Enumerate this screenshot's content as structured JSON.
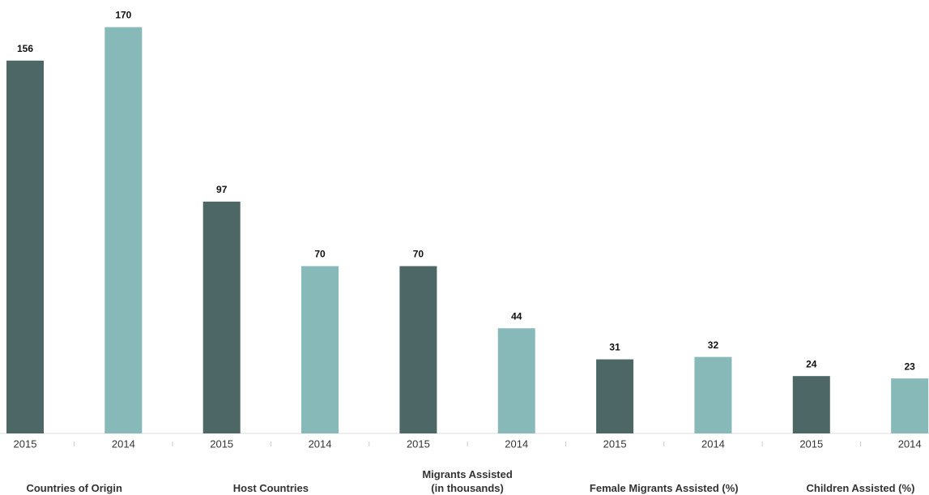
{
  "chart_data": {
    "type": "bar",
    "categories": [
      "2015",
      "2014",
      "2015",
      "2014",
      "2015",
      "2014",
      "2015",
      "2014",
      "2015",
      "2014"
    ],
    "values": [
      156,
      170,
      97,
      70,
      70,
      44,
      31,
      32,
      24,
      23
    ],
    "colors": [
      "#4d6666",
      "#88b9b9"
    ],
    "groups": [
      [
        "Countries of Origin"
      ],
      [
        "Host Countries"
      ],
      [
        "Migrants Assisted",
        "(in thousands)"
      ],
      [
        "Female Migrants Assisted (%)"
      ],
      [
        "Children Assisted (%)"
      ]
    ]
  }
}
